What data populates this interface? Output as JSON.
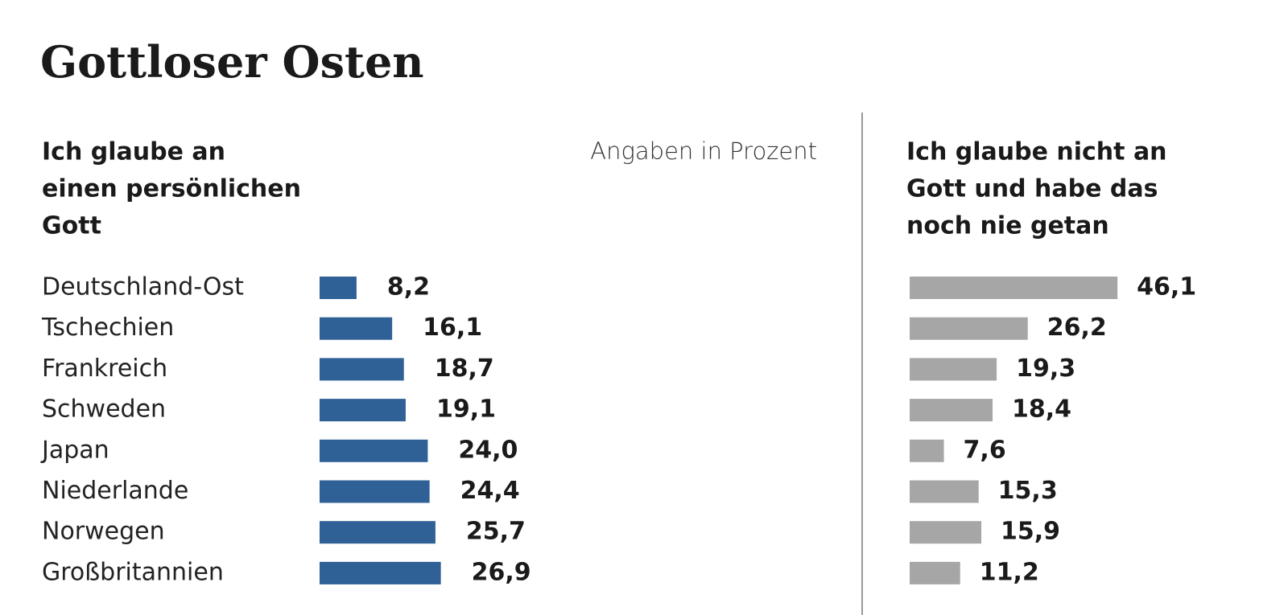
{
  "title": "Gottloser Osten",
  "note": "Angaben in Prozent",
  "chart_data": [
    {
      "type": "bar",
      "orientation": "horizontal",
      "title": [
        "Ich glaube an",
        "einen persönlichen",
        "Gott"
      ],
      "categories": [
        "Deutschland-Ost",
        "Tschechien",
        "Frankreich",
        "Schweden",
        "Japan",
        "Niederlande",
        "Norwegen",
        "Großbritannien"
      ],
      "values": [
        8.2,
        16.1,
        18.7,
        19.1,
        24.0,
        24.4,
        25.7,
        26.9
      ],
      "value_labels": [
        "8,2",
        "16,1",
        "18,7",
        "19,1",
        "24,0",
        "24,4",
        "25,7",
        "26,9"
      ],
      "color": "#2f6196"
    },
    {
      "type": "bar",
      "orientation": "horizontal",
      "title": [
        "Ich glaube nicht an",
        "Gott und habe das",
        "noch nie getan"
      ],
      "values": [
        46.1,
        26.2,
        19.3,
        18.4,
        7.6,
        15.3,
        15.9,
        11.2
      ],
      "value_labels": [
        "46,1",
        "26,2",
        "19,3",
        "18,4",
        "7,6",
        "15,3",
        "15,9",
        "11,2"
      ],
      "color": "#a6a6a6"
    }
  ]
}
